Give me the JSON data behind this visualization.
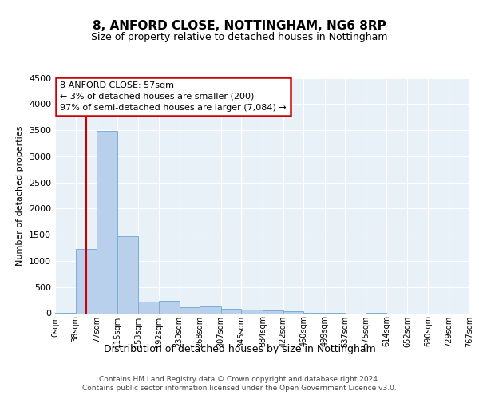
{
  "title": "8, ANFORD CLOSE, NOTTINGHAM, NG6 8RP",
  "subtitle": "Size of property relative to detached houses in Nottingham",
  "xlabel": "Distribution of detached houses by size in Nottingham",
  "ylabel": "Number of detached properties",
  "property_size": 57,
  "bar_color": "#b8d0eb",
  "bar_edge_color": "#7aaed6",
  "vline_color": "#cc0000",
  "background_color": "#e8f0f8",
  "annotation_line1": "8 ANFORD CLOSE: 57sqm",
  "annotation_line2": "← 3% of detached houses are smaller (200)",
  "annotation_line3": "97% of semi-detached houses are larger (7,084) →",
  "annotation_box_facecolor": "#ffffff",
  "annotation_box_edgecolor": "#cc0000",
  "footer_text": "Contains HM Land Registry data © Crown copyright and database right 2024.\nContains public sector information licensed under the Open Government Licence v3.0.",
  "ylim_max": 4500,
  "yticks": [
    0,
    500,
    1000,
    1500,
    2000,
    2500,
    3000,
    3500,
    4000,
    4500
  ],
  "bins": [
    0,
    38,
    77,
    115,
    153,
    192,
    230,
    268,
    307,
    345,
    384,
    422,
    460,
    499,
    537,
    575,
    614,
    652,
    690,
    729,
    767
  ],
  "bar_heights": [
    5,
    1230,
    3490,
    1470,
    215,
    240,
    115,
    130,
    90,
    75,
    50,
    45,
    5,
    5,
    0,
    5,
    0,
    0,
    0,
    0
  ]
}
